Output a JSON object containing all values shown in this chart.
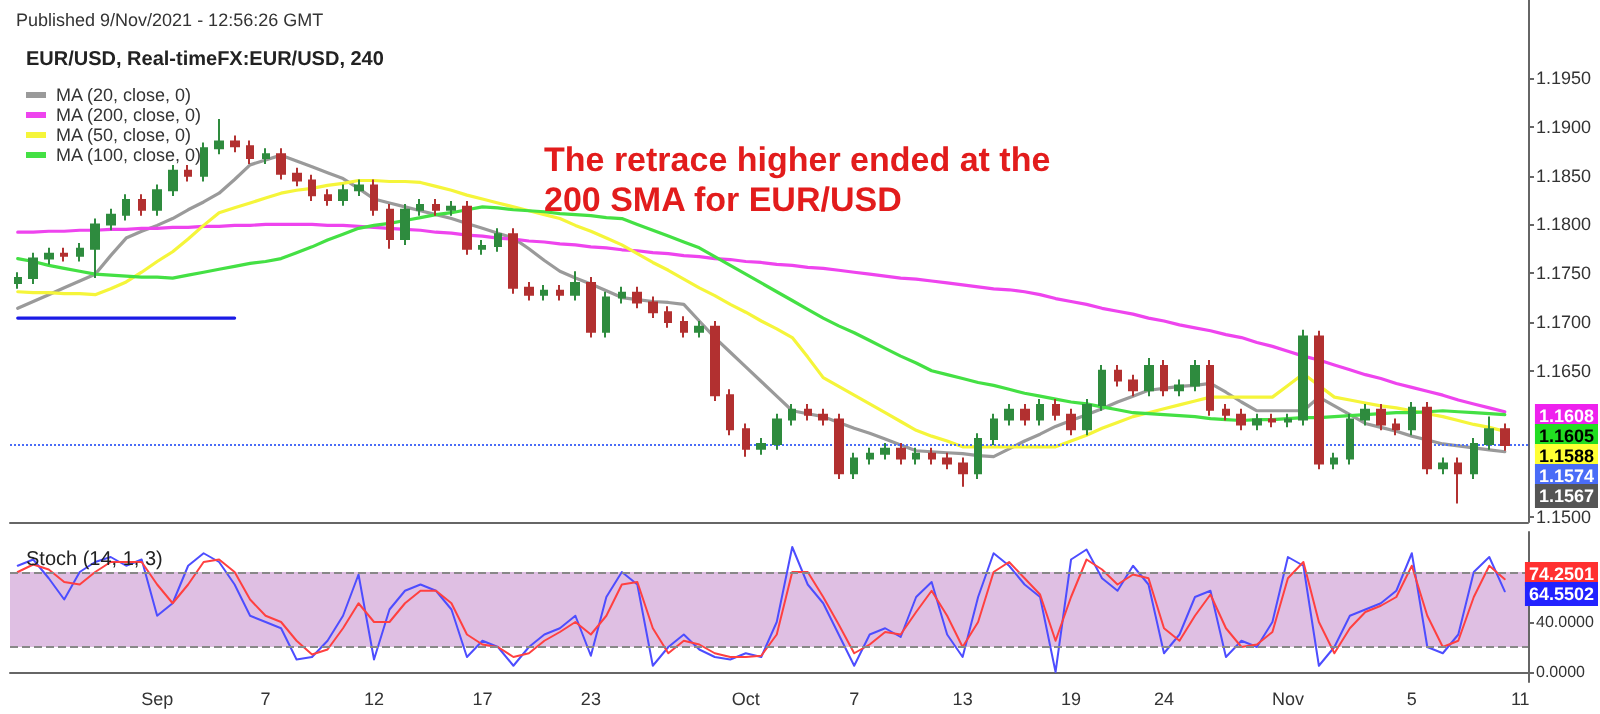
{
  "chart_data": [
    {
      "type": "candlestick",
      "title": "EUR/USD, Real-timeFX:EUR/USD, 240",
      "categories": [
        null,
        null,
        null,
        null,
        null,
        null,
        null,
        null,
        null,
        null,
        null,
        null,
        null,
        null,
        null,
        null,
        null,
        null,
        null,
        null,
        null,
        null,
        null,
        null,
        null,
        null,
        null,
        null,
        null,
        null,
        null,
        null,
        null,
        null,
        null,
        null,
        null,
        null,
        null,
        null,
        null,
        null,
        null,
        null,
        null,
        null,
        null,
        null,
        null,
        null,
        null,
        null,
        null,
        null,
        null,
        null,
        null,
        null,
        null,
        null,
        null,
        null,
        null,
        null,
        null,
        null,
        null,
        null,
        null,
        null,
        null,
        null,
        null,
        null,
        null,
        null,
        null,
        null,
        null,
        null,
        null,
        null,
        null,
        null,
        null,
        null,
        null,
        null,
        null,
        null,
        null,
        null,
        null,
        null,
        null,
        null,
        null,
        null
      ],
      "ohlc": [
        [
          1.174,
          1.1751,
          1.1734,
          1.1745
        ],
        [
          1.1745,
          1.1771,
          1.1739,
          1.1765
        ],
        [
          1.1765,
          1.1776,
          1.1759,
          1.177
        ],
        [
          1.177,
          1.1776,
          1.1762,
          1.1768
        ],
        [
          1.1768,
          1.1781,
          1.1762,
          1.1775
        ],
        [
          1.1775,
          1.1806,
          1.1745,
          1.18
        ],
        [
          1.18,
          1.1816,
          1.1794,
          1.181
        ],
        [
          1.181,
          1.1831,
          1.1804,
          1.1825
        ],
        [
          1.1825,
          1.1831,
          1.1809,
          1.1815
        ],
        [
          1.1815,
          1.1841,
          1.1809,
          1.1835
        ],
        [
          1.1835,
          1.1861,
          1.1829,
          1.1855
        ],
        [
          1.1855,
          1.1861,
          1.1844,
          1.185
        ],
        [
          1.185,
          1.1884,
          1.1844,
          1.1878
        ],
        [
          1.1878,
          1.1908,
          1.1872,
          1.1885
        ],
        [
          1.1885,
          1.1891,
          1.1874,
          1.188
        ],
        [
          1.188,
          1.1886,
          1.1862,
          1.1868
        ],
        [
          1.1868,
          1.1878,
          1.1862,
          1.1872
        ],
        [
          1.1872,
          1.1878,
          1.1846,
          1.1852
        ],
        [
          1.1852,
          1.1858,
          1.1839,
          1.1845
        ],
        [
          1.1845,
          1.1851,
          1.1824,
          1.183
        ],
        [
          1.183,
          1.1836,
          1.1819,
          1.1825
        ],
        [
          1.1825,
          1.1841,
          1.1819,
          1.1835
        ],
        [
          1.1835,
          1.1846,
          1.1829,
          1.184
        ],
        [
          1.184,
          1.1846,
          1.1809,
          1.1815
        ],
        [
          1.1815,
          1.1821,
          1.1775,
          1.1785
        ],
        [
          1.1785,
          1.1821,
          1.1779,
          1.1815
        ],
        [
          1.1815,
          1.1826,
          1.1809,
          1.182
        ],
        [
          1.182,
          1.1826,
          1.1809,
          1.1815
        ],
        [
          1.1815,
          1.1824,
          1.1809,
          1.1818
        ],
        [
          1.1818,
          1.1824,
          1.1769,
          1.1775
        ],
        [
          1.1775,
          1.1784,
          1.1769,
          1.1778
        ],
        [
          1.1778,
          1.1796,
          1.1772,
          1.179
        ],
        [
          1.179,
          1.1796,
          1.1729,
          1.1735
        ],
        [
          1.1735,
          1.1741,
          1.1722,
          1.1728
        ],
        [
          1.1728,
          1.1738,
          1.1722,
          1.1732
        ],
        [
          1.1732,
          1.1738,
          1.1722,
          1.1728
        ],
        [
          1.1728,
          1.1752,
          1.1722,
          1.174
        ],
        [
          1.174,
          1.1746,
          1.1684,
          1.169
        ],
        [
          1.169,
          1.1731,
          1.1684,
          1.1725
        ],
        [
          1.1725,
          1.1736,
          1.1719,
          1.173
        ],
        [
          1.173,
          1.1736,
          1.1714,
          1.172
        ],
        [
          1.172,
          1.1726,
          1.1704,
          1.171
        ],
        [
          1.171,
          1.1716,
          1.1694,
          1.17
        ],
        [
          1.17,
          1.1706,
          1.1684,
          1.169
        ],
        [
          1.169,
          1.1701,
          1.1684,
          1.1695
        ],
        [
          1.1695,
          1.1701,
          1.1619,
          1.1625
        ],
        [
          1.1625,
          1.1631,
          1.1584,
          1.159
        ],
        [
          1.159,
          1.1596,
          1.1562,
          1.157
        ],
        [
          1.157,
          1.1581,
          1.1564,
          1.1575
        ],
        [
          1.1575,
          1.1606,
          1.1569,
          1.16
        ],
        [
          1.16,
          1.1616,
          1.1594,
          1.161
        ],
        [
          1.161,
          1.1616,
          1.1599,
          1.1605
        ],
        [
          1.1605,
          1.1611,
          1.1594,
          1.16
        ],
        [
          1.16,
          1.1606,
          1.1539,
          1.1545
        ],
        [
          1.1545,
          1.1566,
          1.1539,
          1.156
        ],
        [
          1.156,
          1.1571,
          1.1554,
          1.1565
        ],
        [
          1.1565,
          1.1576,
          1.1559,
          1.157
        ],
        [
          1.157,
          1.1576,
          1.1554,
          1.156
        ],
        [
          1.156,
          1.1571,
          1.1554,
          1.1565
        ],
        [
          1.1565,
          1.1571,
          1.1554,
          1.156
        ],
        [
          1.156,
          1.1566,
          1.1549,
          1.1555
        ],
        [
          1.1555,
          1.1561,
          1.1531,
          1.1545
        ],
        [
          1.1545,
          1.1586,
          1.1539,
          1.158
        ],
        [
          1.158,
          1.1606,
          1.1574,
          1.16
        ],
        [
          1.16,
          1.1616,
          1.1594,
          1.161
        ],
        [
          1.161,
          1.1616,
          1.1594,
          1.16
        ],
        [
          1.16,
          1.1621,
          1.1594,
          1.1615
        ],
        [
          1.1615,
          1.1621,
          1.1599,
          1.1605
        ],
        [
          1.1605,
          1.1611,
          1.1584,
          1.159
        ],
        [
          1.159,
          1.1621,
          1.1584,
          1.1615
        ],
        [
          1.1615,
          1.1656,
          1.1609,
          1.165
        ],
        [
          1.165,
          1.1656,
          1.1634,
          1.164
        ],
        [
          1.164,
          1.1646,
          1.1624,
          1.163
        ],
        [
          1.163,
          1.1663,
          1.1624,
          1.1655
        ],
        [
          1.1655,
          1.1661,
          1.1624,
          1.163
        ],
        [
          1.163,
          1.1641,
          1.1624,
          1.1635
        ],
        [
          1.1635,
          1.1661,
          1.1629,
          1.1655
        ],
        [
          1.1655,
          1.1661,
          1.1604,
          1.161
        ],
        [
          1.161,
          1.1616,
          1.1599,
          1.1605
        ],
        [
          1.1605,
          1.1611,
          1.1589,
          1.1595
        ],
        [
          1.1595,
          1.1606,
          1.1589,
          1.16
        ],
        [
          1.16,
          1.1606,
          1.1592,
          1.1598
        ],
        [
          1.1598,
          1.1606,
          1.1592,
          1.16
        ],
        [
          1.16,
          1.1692,
          1.1594,
          1.1685
        ],
        [
          1.1685,
          1.1691,
          1.1549,
          1.1555
        ],
        [
          1.1555,
          1.1566,
          1.1549,
          1.156
        ],
        [
          1.156,
          1.1606,
          1.1554,
          1.16
        ],
        [
          1.16,
          1.1616,
          1.1594,
          1.161
        ],
        [
          1.161,
          1.1616,
          1.1589,
          1.1595
        ],
        [
          1.1595,
          1.1601,
          1.1584,
          1.159
        ],
        [
          1.159,
          1.1618,
          1.1584,
          1.1612
        ],
        [
          1.1612,
          1.1618,
          1.1544,
          1.155
        ],
        [
          1.155,
          1.1561,
          1.1544,
          1.1555
        ],
        [
          1.1555,
          1.1561,
          1.1514,
          1.1545
        ],
        [
          1.1545,
          1.1581,
          1.1539,
          1.1575
        ],
        [
          1.1575,
          1.1603,
          1.1569,
          1.159
        ],
        [
          1.159,
          1.1596,
          1.1568,
          1.1574
        ],
        null
      ],
      "series": [
        {
          "type": "line",
          "name": "MA (20, close, 0)",
          "color": "#9a9a9a",
          "values": [
            1.1714,
            1.1721,
            1.1728,
            1.1735,
            1.1742,
            1.1749,
            1.1768,
            1.1786,
            1.1793,
            1.1799,
            1.1806,
            1.1815,
            1.1823,
            1.1832,
            1.1846,
            1.1861,
            1.1866,
            1.1871,
            1.1865,
            1.1859,
            1.1853,
            1.1847,
            1.1837,
            1.1826,
            1.1822,
            1.1818,
            1.1814,
            1.181,
            1.1806,
            1.1801,
            1.1796,
            1.1791,
            1.1786,
            1.1775,
            1.1763,
            1.1752,
            1.1745,
            1.1739,
            1.1732,
            1.1725,
            1.1723,
            1.1721,
            1.172,
            1.1718,
            1.1701,
            1.1684,
            1.1669,
            1.1654,
            1.1639,
            1.1624,
            1.1609,
            1.1606,
            1.1603,
            1.1597,
            1.1591,
            1.1586,
            1.158,
            1.1574,
            1.1568,
            1.1567,
            1.1566,
            1.1565,
            1.1563,
            1.1562,
            1.157,
            1.1578,
            1.1585,
            1.1593,
            1.1599,
            1.1605,
            1.1611,
            1.1618,
            1.1624,
            1.163,
            1.1632,
            1.1634,
            1.1635,
            1.1637,
            1.1628,
            1.1618,
            1.1609,
            1.1609,
            1.1609,
            1.1609,
            1.1623,
            1.1614,
            1.1605,
            1.1596,
            1.1592,
            1.1588,
            1.1583,
            1.1579,
            1.1575,
            1.1573,
            1.1571,
            1.1569,
            1.1567,
            null
          ]
        },
        {
          "type": "line",
          "name": "MA (200, close, 0)",
          "color": "#ee44ee",
          "values": [
            1.1792,
            1.1792,
            1.1793,
            1.1793,
            1.1794,
            1.1794,
            1.1795,
            1.1795,
            1.1796,
            1.1796,
            1.1797,
            1.1797,
            1.1798,
            1.1798,
            1.1799,
            1.1799,
            1.18,
            1.18,
            1.18,
            1.18,
            1.1799,
            1.1799,
            1.1798,
            1.1797,
            1.1796,
            1.1795,
            1.1794,
            1.1792,
            1.1791,
            1.1789,
            1.1788,
            1.1786,
            1.1785,
            1.1783,
            1.1782,
            1.178,
            1.1779,
            1.1777,
            1.1776,
            1.1774,
            1.1773,
            1.1771,
            1.177,
            1.1768,
            1.1767,
            1.1765,
            1.1764,
            1.1762,
            1.1761,
            1.1759,
            1.1758,
            1.1756,
            1.1755,
            1.1753,
            1.1751,
            1.1749,
            1.1747,
            1.1745,
            1.1744,
            1.1742,
            1.174,
            1.1738,
            1.1736,
            1.1734,
            1.1733,
            1.1731,
            1.1728,
            1.1724,
            1.1721,
            1.1718,
            1.1714,
            1.1711,
            1.1708,
            1.1704,
            1.1701,
            1.1697,
            1.1694,
            1.1691,
            1.1687,
            1.1684,
            1.1679,
            1.1675,
            1.167,
            1.1665,
            1.1661,
            1.1656,
            1.1651,
            1.1646,
            1.1642,
            1.1637,
            1.1633,
            1.1629,
            1.1625,
            1.162,
            1.1616,
            1.1612,
            1.1608,
            null
          ]
        },
        {
          "type": "line",
          "name": "MA (50, close, 0)",
          "color": "#f5f53a",
          "values": [
            1.1731,
            1.173,
            1.173,
            1.1729,
            1.1729,
            1.1728,
            1.1734,
            1.1741,
            1.1751,
            1.1762,
            1.1772,
            1.1785,
            1.1799,
            1.1812,
            1.1817,
            1.1822,
            1.1827,
            1.1832,
            1.1835,
            1.1837,
            1.184,
            1.1842,
            1.1845,
            1.1845,
            1.1844,
            1.1844,
            1.1843,
            1.1839,
            1.1835,
            1.183,
            1.1826,
            1.1822,
            1.1818,
            1.1814,
            1.181,
            1.1806,
            1.1799,
            1.1793,
            1.1786,
            1.1779,
            1.177,
            1.1761,
            1.1753,
            1.1744,
            1.1735,
            1.1727,
            1.1718,
            1.171,
            1.1701,
            1.1693,
            1.1684,
            1.1664,
            1.1643,
            1.1634,
            1.1625,
            1.1616,
            1.1607,
            1.1598,
            1.1589,
            1.1583,
            1.1578,
            1.1572,
            1.1572,
            1.1572,
            1.1572,
            1.1572,
            1.1572,
            1.1572,
            1.1578,
            1.1584,
            1.1591,
            1.1597,
            1.1603,
            1.1607,
            1.1611,
            1.1615,
            1.1619,
            1.1623,
            1.1623,
            1.1623,
            1.1623,
            1.1623,
            1.1635,
            1.1647,
            1.1635,
            1.1623,
            1.162,
            1.1617,
            1.1614,
            1.1612,
            1.1609,
            1.1606,
            1.1603,
            1.1599,
            1.1595,
            1.1592,
            1.1588,
            null
          ]
        },
        {
          "type": "line",
          "name": "MA (100, close, 0)",
          "color": "#44e044",
          "values": [
            1.1765,
            1.1762,
            1.1758,
            1.1755,
            1.1752,
            1.1749,
            1.1748,
            1.1747,
            1.1746,
            1.1746,
            1.1745,
            1.1748,
            1.1751,
            1.1754,
            1.1757,
            1.176,
            1.1762,
            1.1765,
            1.1771,
            1.1777,
            1.1784,
            1.179,
            1.1796,
            1.1799,
            1.1801,
            1.1804,
            1.1807,
            1.181,
            1.1812,
            1.1815,
            1.1818,
            1.1817,
            1.1815,
            1.1814,
            1.1813,
            1.1811,
            1.181,
            1.1809,
            1.1807,
            1.1806,
            1.18,
            1.1794,
            1.1788,
            1.1782,
            1.1776,
            1.1767,
            1.1758,
            1.1749,
            1.174,
            1.1731,
            1.1722,
            1.1713,
            1.1704,
            1.1696,
            1.1689,
            1.1681,
            1.1673,
            1.1665,
            1.1658,
            1.165,
            1.1646,
            1.1642,
            1.1638,
            1.1635,
            1.1631,
            1.1627,
            1.1624,
            1.1621,
            1.1618,
            1.1616,
            1.1613,
            1.161,
            1.1607,
            1.1606,
            1.1605,
            1.1604,
            1.1603,
            1.1601,
            1.16,
            1.1599,
            1.16,
            1.16,
            1.1601,
            1.1602,
            1.1602,
            1.1603,
            1.1604,
            1.1605,
            1.1606,
            1.1607,
            1.1607,
            1.1608,
            1.1609,
            1.1608,
            1.1607,
            1.1606,
            1.1605,
            null
          ]
        },
        {
          "type": "line",
          "color": "#1a1ae6",
          "values": [
            1.1704,
            1.1704,
            1.1704,
            1.1704,
            1.1704,
            1.1704,
            1.1704,
            1.1704,
            1.1704,
            1.1704,
            1.1704,
            1.1704,
            1.1704,
            1.1704,
            1.1704,
            null,
            null,
            null,
            null,
            null,
            null,
            null,
            null,
            null,
            null,
            null,
            null,
            null,
            null,
            null,
            null,
            null,
            null,
            null,
            null,
            null,
            null,
            null,
            null,
            null,
            null,
            null,
            null,
            null,
            null,
            null,
            null,
            null,
            null,
            null,
            null,
            null,
            null,
            null,
            null,
            null,
            null,
            null,
            null,
            null,
            null,
            null,
            null,
            null,
            null,
            null,
            null,
            null,
            null,
            null,
            null,
            null,
            null,
            null,
            null,
            null,
            null,
            null,
            null,
            null,
            null,
            null,
            null,
            null,
            null,
            null,
            null,
            null,
            null,
            null,
            null,
            null,
            null,
            null,
            null,
            null,
            null,
            null
          ]
        }
      ],
      "ylim": [
        1.1495,
        1.203
      ],
      "yticks": [
        {
          "value": 1.15,
          "label": "1.1500"
        },
        {
          "value": 1.165,
          "label": "1.1650"
        },
        {
          "value": 1.17,
          "label": "1.1700"
        },
        {
          "value": 1.175,
          "label": "1.1750"
        },
        {
          "value": 1.18,
          "label": "1.1800"
        },
        {
          "value": 1.185,
          "label": "1.1850"
        },
        {
          "value": 1.19,
          "label": "1.1900"
        },
        {
          "value": 1.195,
          "label": "1.1950"
        }
      ],
      "ref_lines": [
        {
          "axis": "y",
          "value": 1.1574,
          "color": "#4a6cf7",
          "line_style": "dotted"
        }
      ],
      "annotations": [
        "Published 9/Nov/2021 - 12:56:26 GMT",
        "The retrace higher ended at the 200 SMA for EUR/USD",
        "1.1608",
        "1.1605",
        "1.1588",
        "1.1574",
        "1.1567"
      ],
      "legend": "top left",
      "marker": "none"
    },
    {
      "type": "line",
      "title": "Stoch (14, 1, 3)",
      "categories": [
        null,
        null,
        null,
        null,
        null,
        null,
        null,
        null,
        null,
        "Sep",
        null,
        null,
        null,
        null,
        null,
        null,
        "7",
        null,
        null,
        null,
        null,
        null,
        null,
        "12",
        null,
        null,
        null,
        null,
        null,
        null,
        "17",
        null,
        null,
        null,
        null,
        null,
        null,
        "23",
        null,
        null,
        null,
        null,
        null,
        null,
        null,
        null,
        null,
        "Oct",
        null,
        null,
        null,
        null,
        null,
        null,
        "7",
        null,
        null,
        null,
        null,
        null,
        null,
        "13",
        null,
        null,
        null,
        null,
        null,
        null,
        "19",
        null,
        null,
        null,
        null,
        null,
        "24",
        null,
        null,
        null,
        null,
        null,
        null,
        null,
        "Nov",
        null,
        null,
        null,
        null,
        null,
        null,
        null,
        "5",
        null,
        null,
        null,
        null,
        null,
        null,
        "11"
      ],
      "series": [
        {
          "color": "#4d4dff",
          "values": [
            85,
            90,
            75,
            58,
            80,
            88,
            92,
            85,
            90,
            45,
            55,
            85,
            95,
            88,
            70,
            45,
            40,
            35,
            10,
            12,
            25,
            45,
            78,
            10,
            50,
            65,
            70,
            65,
            50,
            12,
            25,
            20,
            5,
            20,
            30,
            35,
            45,
            13,
            60,
            80,
            70,
            5,
            20,
            30,
            18,
            12,
            10,
            15,
            12,
            40,
            100,
            70,
            55,
            30,
            5,
            30,
            35,
            28,
            60,
            72,
            30,
            12,
            60,
            95,
            85,
            70,
            60,
            0,
            90,
            98,
            75,
            65,
            85,
            70,
            15,
            30,
            60,
            65,
            12,
            25,
            20,
            40,
            92,
            85,
            5,
            20,
            45,
            50,
            55,
            65,
            95,
            20,
            15,
            30,
            80,
            92,
            64.5502,
            null
          ]
        },
        {
          "color": "#ff4040",
          "values": [
            80,
            86,
            82,
            72,
            70,
            80,
            88,
            88,
            88,
            70,
            55,
            70,
            88,
            90,
            80,
            58,
            45,
            40,
            25,
            14,
            18,
            35,
            55,
            40,
            40,
            55,
            65,
            65,
            55,
            30,
            22,
            20,
            12,
            15,
            25,
            32,
            40,
            30,
            45,
            70,
            72,
            35,
            15,
            25,
            22,
            15,
            12,
            12,
            13,
            30,
            80,
            80,
            60,
            38,
            15,
            22,
            32,
            30,
            48,
            65,
            45,
            20,
            40,
            80,
            88,
            75,
            62,
            25,
            60,
            90,
            82,
            70,
            78,
            75,
            35,
            25,
            45,
            62,
            35,
            20,
            22,
            32,
            75,
            88,
            40,
            15,
            35,
            48,
            53,
            60,
            85,
            45,
            20,
            25,
            60,
            85,
            74.2501,
            null
          ]
        }
      ],
      "ylim": [
        -8,
        112
      ],
      "yticks": [
        {
          "value": 0,
          "label": "0.0000"
        },
        {
          "value": 40,
          "label": "40.0000"
        }
      ],
      "bands": [
        {
          "axis": "y",
          "from": 20,
          "to": 80,
          "color": "#dfbfe3"
        }
      ],
      "ref_lines": [
        {
          "axis": "y",
          "value": 80,
          "color": "#888888",
          "line_style": "dashed"
        },
        {
          "axis": "y",
          "value": 20,
          "color": "#888888",
          "line_style": "dashed"
        }
      ],
      "annotations": [
        "74.2501",
        "64.5502"
      ],
      "marker": "none"
    }
  ]
}
